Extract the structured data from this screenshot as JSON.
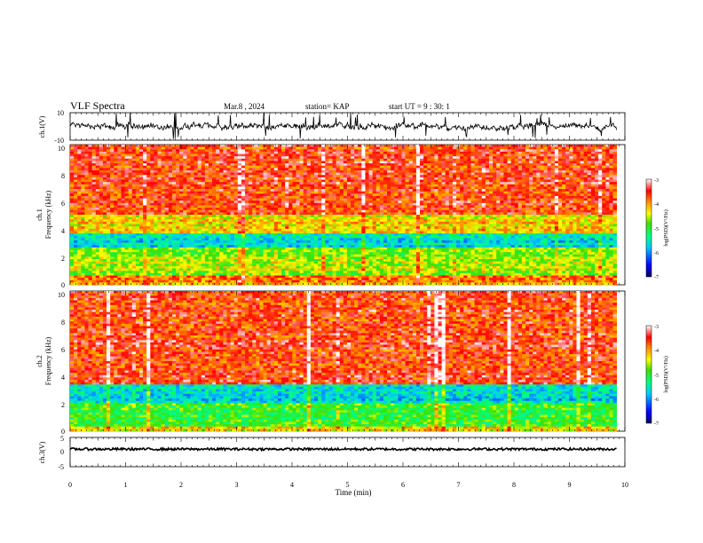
{
  "header": {
    "title": "VLF Spectra",
    "date": "Mar.8 , 2024",
    "station": "station= KAP",
    "start": "start UT =  9 : 30: 1"
  },
  "chart_data": [
    {
      "type": "line",
      "panel": "ch1-waveform",
      "ylabel": "ch.1(V)",
      "ylim": [
        -10,
        10
      ],
      "yticks": [
        "10",
        "-10"
      ],
      "xlim": [
        0,
        10
      ],
      "color": "#000000",
      "description_values": "noisy time series, mostly between -5 and 5 V"
    },
    {
      "type": "heatmap",
      "panel": "ch1-spectrogram",
      "ylabel_line1": "ch.1",
      "ylabel_line2": "Frequency (kHz)",
      "ylim": [
        0,
        10
      ],
      "yticks": [
        "0",
        "2",
        "4",
        "6",
        "8",
        "10"
      ],
      "xlim": [
        0,
        9.85
      ],
      "colorbar": {
        "label": "log(PSD)(V²/Hz)",
        "range": [
          -7,
          -3
        ],
        "ticks": [
          "-3",
          "-4",
          "-5",
          "-6",
          "-7"
        ]
      },
      "bands_khz": [
        {
          "range": [
            0,
            0.6
          ],
          "level": -4.0
        },
        {
          "range": [
            0.6,
            2.6
          ],
          "level": -4.6
        },
        {
          "range": [
            2.6,
            3.6
          ],
          "level": -5.6
        },
        {
          "range": [
            3.6,
            5.0
          ],
          "level": -4.3
        },
        {
          "range": [
            5.0,
            10.0
          ],
          "level": -3.6
        }
      ]
    },
    {
      "type": "heatmap",
      "panel": "ch2-spectrogram",
      "ylabel_line1": "ch.2",
      "ylabel_line2": "Frequency (kHz)",
      "ylim": [
        0,
        10
      ],
      "yticks": [
        "0",
        "2",
        "4",
        "6",
        "8",
        "10"
      ],
      "xlim": [
        0,
        9.85
      ],
      "colorbar": {
        "label": "log(PSD)(V²/Hz)",
        "range": [
          -7,
          -3
        ],
        "ticks": [
          "-3",
          "-4",
          "-5",
          "-6",
          "-7"
        ]
      },
      "bands_khz": [
        {
          "range": [
            0,
            0.4
          ],
          "level": -4.2
        },
        {
          "range": [
            0.4,
            2.0
          ],
          "level": -5.0
        },
        {
          "range": [
            2.0,
            3.4
          ],
          "level": -5.7
        },
        {
          "range": [
            3.4,
            10.0
          ],
          "level": -3.6
        }
      ]
    },
    {
      "type": "line",
      "panel": "ch3-waveform",
      "ylabel": "ch.3(V)",
      "ylim": [
        -5,
        5
      ],
      "yticks": [
        "5",
        "0",
        "-5"
      ],
      "xlim": [
        0,
        10
      ],
      "xlabel": "Time (min)",
      "xticks": [
        "0",
        "1",
        "2",
        "3",
        "4",
        "5",
        "6",
        "7",
        "8",
        "9",
        "10"
      ],
      "color": "#000000",
      "approx_level": 1.0
    }
  ]
}
